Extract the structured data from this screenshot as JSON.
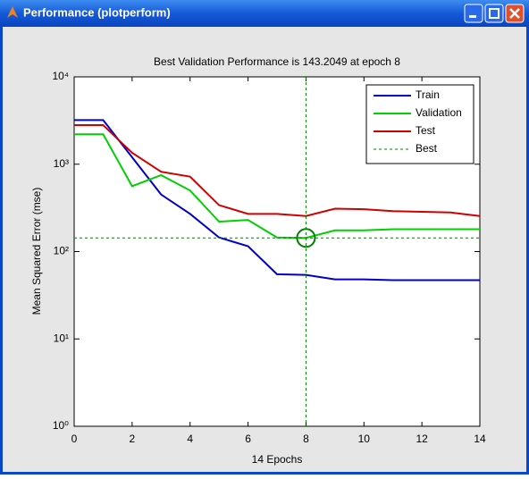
{
  "window_title": "Performance (plotperform)",
  "chart_data": {
    "type": "line",
    "title": "Best Validation Performance is 143.2049 at epoch 8",
    "xlabel": "14 Epochs",
    "ylabel": "Mean Squared Error  (mse)",
    "x": [
      0,
      1,
      2,
      3,
      4,
      5,
      6,
      7,
      8,
      9,
      10,
      11,
      12,
      13,
      14
    ],
    "series": [
      {
        "name": "Train",
        "color": "#0000c8",
        "values": [
          3200,
          3200,
          1200,
          450,
          270,
          145,
          115,
          55,
          54,
          48,
          48,
          47,
          47,
          47,
          47
        ]
      },
      {
        "name": "Validation",
        "color": "#00d000",
        "values": [
          2200,
          2200,
          560,
          750,
          500,
          220,
          230,
          145,
          143.2049,
          175,
          175,
          180,
          180,
          180,
          180
        ]
      },
      {
        "name": "Test",
        "color": "#d00000",
        "values": [
          2800,
          2800,
          1350,
          820,
          720,
          340,
          270,
          270,
          255,
          310,
          305,
          290,
          285,
          280,
          255
        ]
      }
    ],
    "best": {
      "name": "Best",
      "color": "#008000",
      "x": 8,
      "y": 143.2049
    },
    "xlim": [
      0,
      14
    ],
    "xticks": [
      0,
      2,
      4,
      6,
      8,
      10,
      12,
      14
    ],
    "ylim": [
      1,
      10000
    ],
    "log_y": true,
    "yticks": [
      {
        "value": 1,
        "label": "10⁰"
      },
      {
        "value": 10,
        "label": "10¹"
      },
      {
        "value": 100,
        "label": "10²"
      },
      {
        "value": 1000,
        "label": "10³"
      },
      {
        "value": 10000,
        "label": "10⁴"
      }
    ],
    "legend": "upper right"
  }
}
